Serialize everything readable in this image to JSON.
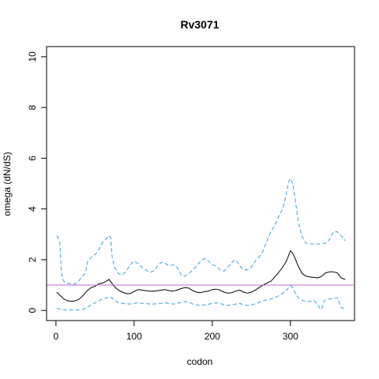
{
  "chart_data": {
    "type": "line",
    "title": "Rv3071",
    "xlabel": "codon",
    "ylabel": "omega (dN/dS)",
    "xlim": [
      -12,
      382
    ],
    "ylim": [
      -0.4,
      10.4
    ],
    "x_ticks": [
      0,
      100,
      200,
      300
    ],
    "y_ticks": [
      0,
      2,
      4,
      6,
      8,
      10
    ],
    "grid": false,
    "legend": "none",
    "reference_line": {
      "y": 1,
      "color": "#cc66cc"
    },
    "series": [
      {
        "style": "solid",
        "color": "#000000",
        "x": [
          1,
          5,
          10,
          15,
          20,
          25,
          30,
          35,
          40,
          45,
          50,
          55,
          60,
          64,
          68,
          72,
          76,
          80,
          85,
          90,
          95,
          100,
          105,
          110,
          115,
          120,
          125,
          130,
          135,
          140,
          145,
          150,
          155,
          160,
          165,
          170,
          175,
          180,
          185,
          190,
          195,
          200,
          205,
          210,
          215,
          220,
          225,
          230,
          235,
          240,
          245,
          250,
          255,
          260,
          265,
          270,
          275,
          280,
          285,
          290,
          295,
          298,
          300,
          303,
          306,
          310,
          315,
          320,
          325,
          330,
          335,
          340,
          345,
          350,
          355,
          360,
          365,
          370
        ],
        "y": [
          0.72,
          0.6,
          0.45,
          0.38,
          0.36,
          0.38,
          0.45,
          0.6,
          0.78,
          0.9,
          0.95,
          1.05,
          1.08,
          1.15,
          1.22,
          1.05,
          0.9,
          0.8,
          0.72,
          0.66,
          0.66,
          0.75,
          0.82,
          0.8,
          0.78,
          0.76,
          0.76,
          0.78,
          0.8,
          0.82,
          0.78,
          0.76,
          0.8,
          0.86,
          0.9,
          0.88,
          0.78,
          0.72,
          0.7,
          0.74,
          0.76,
          0.82,
          0.84,
          0.8,
          0.72,
          0.68,
          0.7,
          0.76,
          0.8,
          0.72,
          0.68,
          0.72,
          0.8,
          0.9,
          1.0,
          1.08,
          1.15,
          1.32,
          1.5,
          1.7,
          1.95,
          2.2,
          2.35,
          2.25,
          2.05,
          1.75,
          1.45,
          1.35,
          1.32,
          1.3,
          1.28,
          1.35,
          1.48,
          1.52,
          1.52,
          1.48,
          1.28,
          1.22
        ]
      },
      {
        "style": "dashed",
        "color": "#3a9fd8",
        "x": [
          1,
          3,
          5,
          7,
          9,
          11,
          14,
          18,
          22,
          26,
          30,
          34,
          38,
          40,
          45,
          50,
          55,
          60,
          65,
          68,
          70,
          72,
          75,
          80,
          85,
          90,
          95,
          100,
          105,
          110,
          115,
          120,
          125,
          130,
          135,
          140,
          145,
          150,
          155,
          160,
          165,
          170,
          175,
          180,
          185,
          190,
          195,
          200,
          205,
          210,
          215,
          220,
          225,
          230,
          235,
          240,
          245,
          250,
          255,
          260,
          265,
          270,
          275,
          280,
          285,
          290,
          293,
          296,
          298,
          300,
          303,
          306,
          310,
          315,
          320,
          325,
          330,
          335,
          340,
          345,
          350,
          355,
          360,
          362,
          365,
          370
        ],
        "y": [
          2.95,
          2.85,
          2.65,
          1.5,
          1.2,
          1.12,
          1.08,
          1.05,
          1.02,
          1.08,
          1.2,
          1.35,
          1.5,
          1.9,
          2.1,
          2.2,
          2.4,
          2.7,
          2.85,
          2.95,
          2.85,
          2.1,
          1.7,
          1.45,
          1.4,
          1.55,
          1.8,
          1.95,
          1.85,
          1.7,
          1.6,
          1.5,
          1.55,
          1.75,
          1.9,
          1.85,
          1.75,
          1.8,
          1.7,
          1.4,
          1.35,
          1.45,
          1.6,
          1.75,
          1.95,
          2.05,
          1.95,
          1.8,
          1.75,
          1.6,
          1.55,
          1.7,
          1.9,
          2.0,
          1.75,
          1.6,
          1.6,
          1.7,
          1.95,
          2.1,
          2.35,
          2.75,
          3.1,
          3.35,
          3.7,
          4.0,
          4.35,
          4.8,
          5.1,
          5.2,
          5.0,
          4.4,
          3.5,
          2.9,
          2.65,
          2.62,
          2.62,
          2.62,
          2.62,
          2.65,
          2.8,
          3.1,
          3.1,
          3.0,
          2.95,
          2.75
        ]
      },
      {
        "style": "dashed",
        "color": "#3a9fd8",
        "x": [
          1,
          5,
          10,
          15,
          20,
          25,
          30,
          35,
          40,
          45,
          50,
          55,
          60,
          65,
          68,
          72,
          76,
          80,
          85,
          90,
          95,
          100,
          105,
          110,
          115,
          120,
          125,
          130,
          135,
          140,
          145,
          150,
          155,
          160,
          165,
          170,
          175,
          180,
          185,
          190,
          195,
          200,
          205,
          210,
          215,
          220,
          225,
          230,
          235,
          240,
          245,
          250,
          255,
          260,
          265,
          270,
          275,
          280,
          285,
          290,
          295,
          298,
          300,
          303,
          306,
          310,
          315,
          320,
          325,
          330,
          335,
          338,
          340,
          343,
          345,
          350,
          355,
          360,
          365,
          370
        ],
        "y": [
          0.08,
          0.06,
          0.03,
          0.02,
          0.02,
          0.02,
          0.02,
          0.05,
          0.12,
          0.22,
          0.3,
          0.38,
          0.45,
          0.5,
          0.55,
          0.48,
          0.38,
          0.3,
          0.28,
          0.26,
          0.25,
          0.28,
          0.3,
          0.28,
          0.27,
          0.25,
          0.25,
          0.27,
          0.28,
          0.3,
          0.27,
          0.25,
          0.28,
          0.32,
          0.35,
          0.33,
          0.25,
          0.22,
          0.2,
          0.22,
          0.24,
          0.28,
          0.3,
          0.28,
          0.22,
          0.2,
          0.22,
          0.25,
          0.28,
          0.22,
          0.2,
          0.22,
          0.26,
          0.32,
          0.38,
          0.42,
          0.45,
          0.5,
          0.58,
          0.68,
          0.8,
          0.9,
          0.98,
          0.9,
          0.7,
          0.5,
          0.4,
          0.35,
          0.36,
          0.38,
          0.25,
          0.05,
          0.05,
          0.35,
          0.42,
          0.45,
          0.48,
          0.5,
          0.1,
          0.08
        ]
      }
    ]
  }
}
